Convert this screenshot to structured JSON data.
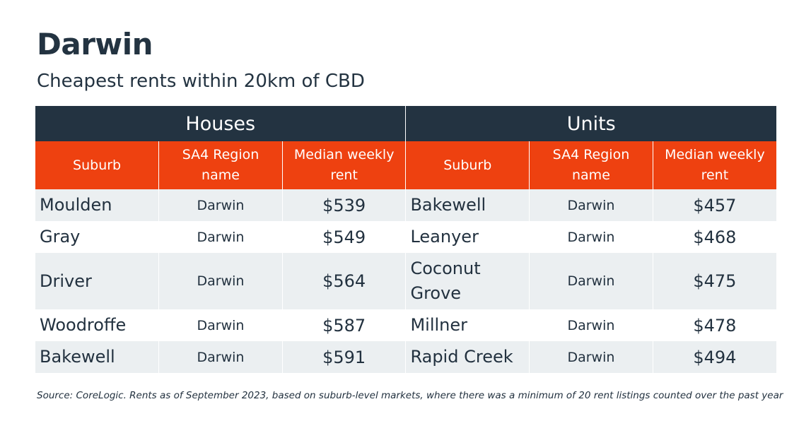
{
  "title": "Darwin",
  "subtitle": "Cheapest rents within 20km of CBD",
  "groups": {
    "houses": "Houses",
    "units": "Units"
  },
  "columns": {
    "suburb": "Suburb",
    "region": "SA4 Region name",
    "rent": "Median weekly rent"
  },
  "rows": [
    {
      "house_suburb": "Moulden",
      "house_region": "Darwin",
      "house_rent": "$539",
      "unit_suburb": "Bakewell",
      "unit_region": "Darwin",
      "unit_rent": "$457"
    },
    {
      "house_suburb": "Gray",
      "house_region": "Darwin",
      "house_rent": "$549",
      "unit_suburb": "Leanyer",
      "unit_region": "Darwin",
      "unit_rent": "$468"
    },
    {
      "house_suburb": "Driver",
      "house_region": "Darwin",
      "house_rent": "$564",
      "unit_suburb": "Coconut Grove",
      "unit_region": "Darwin",
      "unit_rent": "$475"
    },
    {
      "house_suburb": "Woodroffe",
      "house_region": "Darwin",
      "house_rent": "$587",
      "unit_suburb": "Millner",
      "unit_region": "Darwin",
      "unit_rent": "$478"
    },
    {
      "house_suburb": "Bakewell",
      "house_region": "Darwin",
      "house_rent": "$591",
      "unit_suburb": "Rapid Creek",
      "unit_region": "Darwin",
      "unit_rent": "$494"
    }
  ],
  "source": "Source: CoreLogic. Rents as of September 2023, based on suburb-level markets, where there was a minimum of 20 rent listings counted over the past year",
  "colors": {
    "header_dark": "#233341",
    "header_accent": "#ee4110",
    "row_shade": "#ebeff1",
    "text": "#233341"
  }
}
